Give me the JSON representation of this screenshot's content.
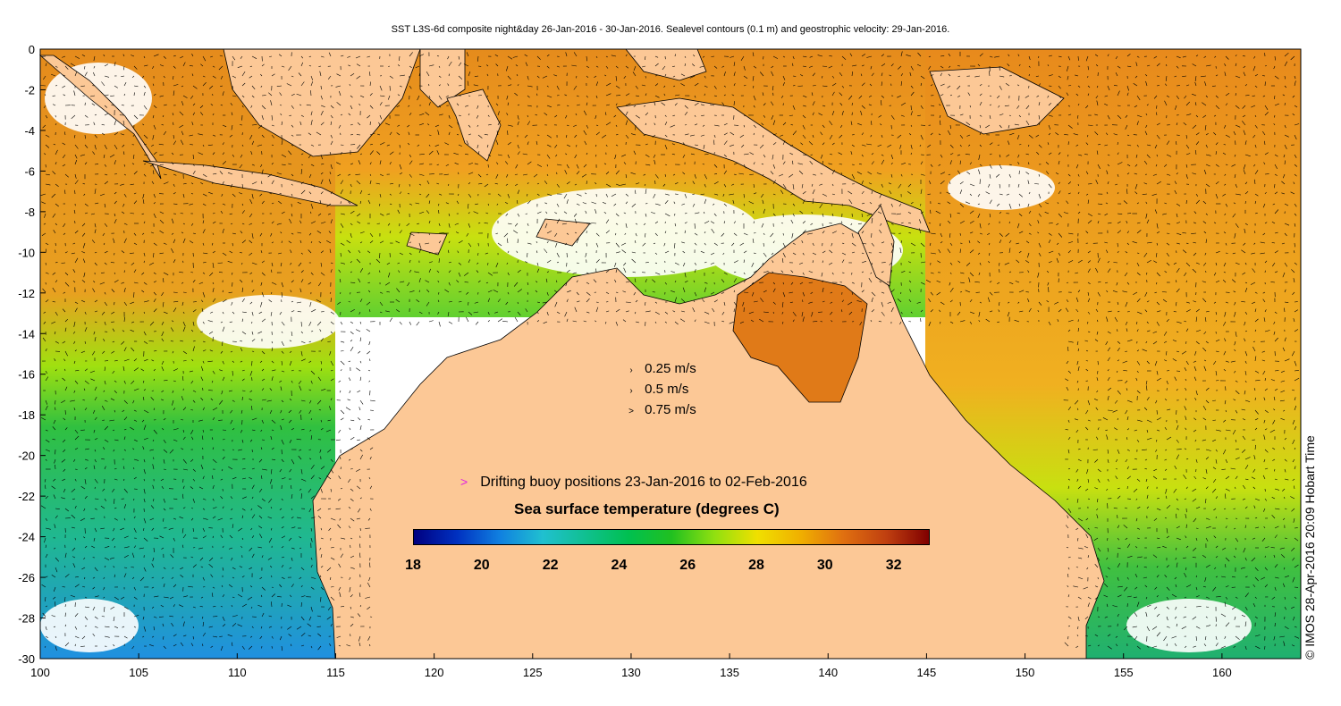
{
  "title": "SST L3S-6d composite night&day 26-Jan-2016 - 30-Jan-2016. Sealevel contours (0.1 m) and geostrophic velocity: 29-Jan-2016.",
  "axes": {
    "x_ticks": [
      "100",
      "105",
      "110",
      "115",
      "120",
      "125",
      "130",
      "135",
      "140",
      "145",
      "150",
      "155",
      "160"
    ],
    "y_ticks": [
      "0",
      "-2",
      "-4",
      "-6",
      "-8",
      "-10",
      "-12",
      "-14",
      "-16",
      "-18",
      "-20",
      "-22",
      "-24",
      "-26",
      "-28",
      "-30"
    ],
    "xlim": [
      100,
      164
    ],
    "ylim": [
      -30,
      0
    ]
  },
  "velocity_legend": {
    "rows": [
      {
        "label": "0.25 m/s",
        "symbol": "›"
      },
      {
        "label": "0.5 m/s",
        "symbol": "›"
      },
      {
        "label": "0.75 m/s",
        "symbol": ">"
      }
    ]
  },
  "buoy_legend": {
    "symbol": ">",
    "label": "Drifting buoy positions 23-Jan-2016 to 02-Feb-2016",
    "color": "#e020e0"
  },
  "colorbar": {
    "title": "Sea surface temperature (degrees C)",
    "min": 18,
    "max": 33,
    "ticks": [
      "18",
      "20",
      "22",
      "24",
      "26",
      "28",
      "30",
      "32"
    ],
    "colors": [
      "#000080",
      "#0030c0",
      "#1080e0",
      "#20c0d0",
      "#10c090",
      "#00c050",
      "#20c020",
      "#90e010",
      "#f0e000",
      "#f0b000",
      "#e07010",
      "#c04010",
      "#800000"
    ]
  },
  "colors": {
    "land": "#fcc896",
    "ocean_cloud": "#ffffff",
    "warm": "#e08a1a",
    "cool": "#30c040",
    "coast": "#000000"
  },
  "copyright": "© IMOS 28-Apr-2016 20:09 Hobart Time"
}
